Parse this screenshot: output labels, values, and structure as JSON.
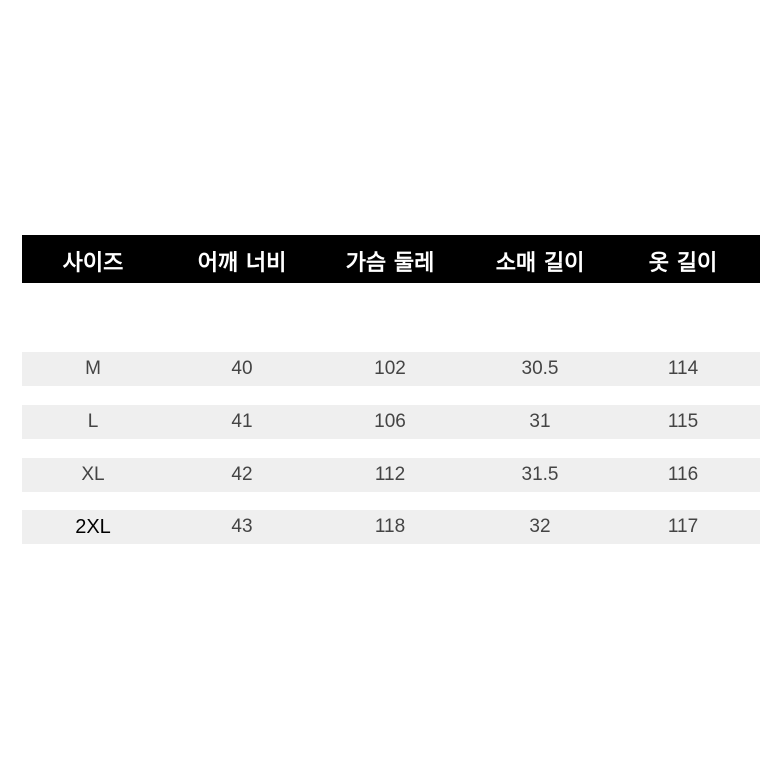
{
  "table": {
    "headers": [
      "사이즈",
      "어깨 너비",
      "가슴 둘레",
      "소매 길이",
      "옷 길이"
    ],
    "rows": [
      [
        "M",
        "40",
        "102",
        "30.5",
        "114"
      ],
      [
        "L",
        "41",
        "106",
        "31",
        "115"
      ],
      [
        "XL",
        "42",
        "112",
        "31.5",
        "116"
      ],
      [
        "2XL",
        "43",
        "118",
        "32",
        "117"
      ]
    ]
  },
  "colors": {
    "header_bg": "#000000",
    "header_text": "#ffffff",
    "row_stripe": "#efefef",
    "cell_text": "#444444"
  }
}
